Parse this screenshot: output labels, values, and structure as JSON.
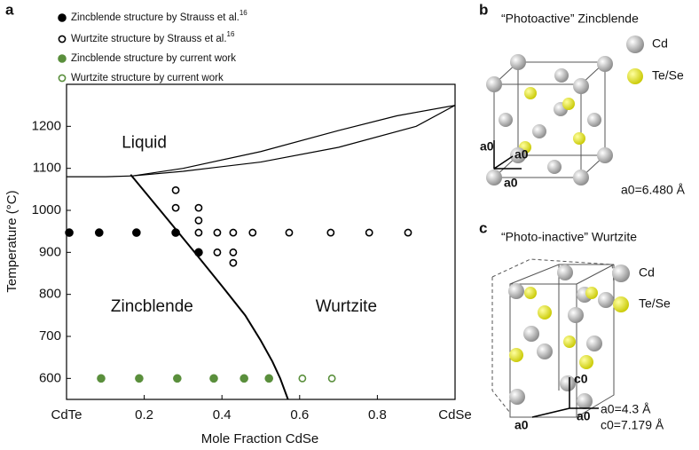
{
  "chart_data": {
    "type": "scatter",
    "panel_label": "a",
    "xlabel": "Mole Fraction CdSe",
    "ylabel": "Temperature (°C)",
    "xlim": [
      0,
      1
    ],
    "ylim": [
      550,
      1300
    ],
    "xticks": [
      {
        "value": 0,
        "label": "CdTe"
      },
      0.2,
      0.4,
      0.6,
      0.8,
      {
        "value": 1,
        "label": "CdSe"
      }
    ],
    "yticks": [
      600,
      700,
      800,
      900,
      1000,
      1100,
      1200
    ],
    "annotations": [
      "Liquid",
      "Zincblende",
      "Wurtzite"
    ],
    "series": [
      {
        "name": "Zincblende structure by Strauss et al.",
        "ref": "16",
        "marker": "filled",
        "color": "#000000",
        "x": [
          0.007,
          0.084,
          0.18,
          0.281,
          0.34
        ],
        "values": [
          947,
          947,
          947,
          947,
          900
        ]
      },
      {
        "name": "Wurtzite structure by Strauss et al.",
        "ref": "16",
        "marker": "open",
        "color": "#000000",
        "x": [
          0.281,
          0.281,
          0.34,
          0.34,
          0.34,
          0.388,
          0.388,
          0.429,
          0.429,
          0.429,
          0.479,
          0.573,
          0.68,
          0.779,
          0.879
        ],
        "values": [
          1048,
          1006,
          1006,
          976,
          947,
          947,
          900,
          947,
          900,
          875,
          947,
          947,
          947,
          947,
          947
        ]
      },
      {
        "name": "Zincblende structure by current work",
        "marker": "filled",
        "color": "#5a8f3c",
        "x": [
          0.089,
          0.187,
          0.285,
          0.379,
          0.457,
          0.521
        ],
        "values": [
          600,
          600,
          600,
          600,
          600,
          600
        ]
      },
      {
        "name": "Wurtzite structure by current work",
        "marker": "open",
        "color": "#5a8f3c",
        "x": [
          0.607,
          0.683
        ],
        "values": [
          600,
          600
        ]
      }
    ],
    "phase_lines": [
      {
        "color": "#000000",
        "x": [
          0,
          0.1,
          0.17,
          0.3,
          0.5,
          0.7,
          0.85,
          1
        ],
        "values": [
          1080,
          1080,
          1082,
          1100,
          1140,
          1190,
          1225,
          1250
        ]
      },
      {
        "color": "#000000",
        "x": [
          0.17,
          0.3,
          0.5,
          0.7,
          0.9,
          1
        ],
        "values": [
          1082,
          1093,
          1115,
          1150,
          1200,
          1250
        ]
      },
      {
        "color": "#000000",
        "x": [
          0.165,
          0.25,
          0.33,
          0.4,
          0.46,
          0.5,
          0.53,
          0.55,
          0.57
        ],
        "values": [
          1085,
          990,
          900,
          820,
          750,
          690,
          640,
          600,
          550
        ]
      }
    ]
  },
  "panels": [
    {
      "label": "b",
      "title": "“Photoactive” Zincblende",
      "legend": [
        "Cd",
        "Te/Se"
      ],
      "axes": [
        "a0",
        "a0",
        "a0"
      ],
      "parameters": [
        "a0=6.480 Å"
      ]
    },
    {
      "label": "c",
      "title": "“Photo-inactive” Wurtzite",
      "legend": [
        "Cd",
        "Te/Se"
      ],
      "axes": [
        "c0",
        "a0",
        "a0"
      ],
      "parameters": [
        "a0=4.3 Å",
        "c0=7.179 Å"
      ]
    }
  ]
}
